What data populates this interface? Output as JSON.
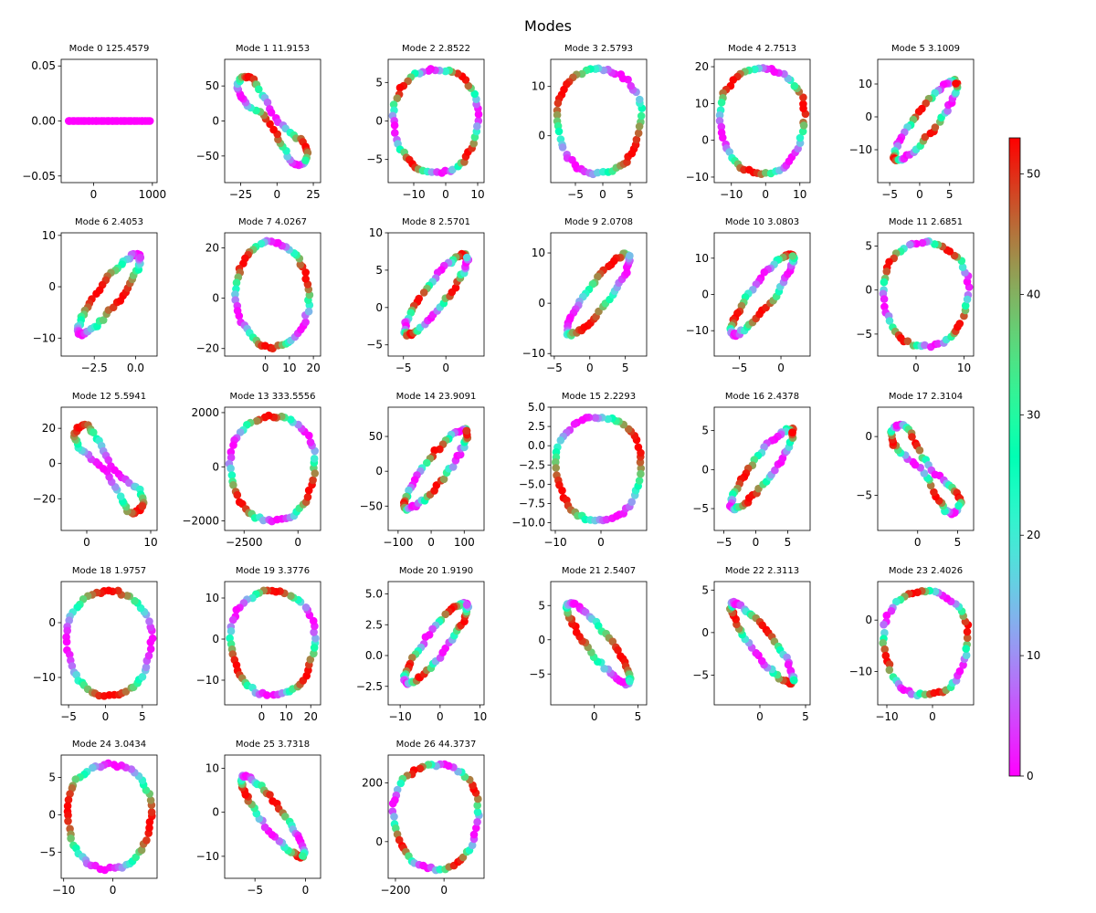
{
  "title": "Modes",
  "colorbar": {
    "min": 0,
    "max": 53,
    "ticks": [
      0,
      10,
      20,
      30,
      40,
      50
    ],
    "colormap": "rainbow"
  },
  "chart_data": [
    {
      "type": "scatter",
      "title": "Mode 0 125.4579",
      "xlim": [
        -550,
        1080
      ],
      "ylim": [
        -0.056,
        0.056
      ],
      "xticks": [
        "0",
        "1000"
      ],
      "xtickvals": [
        0,
        1000
      ],
      "yticks": [
        "−0.05",
        "0.00",
        "0.05"
      ],
      "ytickvals": [
        -0.05,
        0,
        0.05
      ],
      "shape": "line"
    },
    {
      "type": "scatter",
      "title": "Mode 1 11.9153",
      "xlim": [
        -36,
        30
      ],
      "ylim": [
        -88,
        88
      ],
      "xticks": [
        "−25",
        "0",
        "25"
      ],
      "xtickvals": [
        -25,
        0,
        25
      ],
      "yticks": [
        "−50",
        "0",
        "50"
      ],
      "ytickvals": [
        -50,
        0,
        50
      ],
      "shape": "pinched"
    },
    {
      "type": "scatter",
      "title": "Mode 2 2.8522",
      "xlim": [
        -18,
        12
      ],
      "ylim": [
        -8,
        8
      ],
      "xticks": [
        "−10",
        "0",
        "10"
      ],
      "xtickvals": [
        -10,
        0,
        10
      ],
      "yticks": [
        "−5",
        "0",
        "5"
      ],
      "ytickvals": [
        -5,
        0,
        5
      ],
      "shape": "ellipse"
    },
    {
      "type": "scatter",
      "title": "Mode 3 2.5793",
      "xlim": [
        -9.5,
        8
      ],
      "ylim": [
        -9.5,
        15.5
      ],
      "xticks": [
        "−5",
        "0",
        "5"
      ],
      "xtickvals": [
        -5,
        0,
        5
      ],
      "yticks": [
        "0",
        "10"
      ],
      "ytickvals": [
        0,
        10
      ],
      "shape": "ellipse"
    },
    {
      "type": "scatter",
      "title": "Mode 4 2.7513",
      "xlim": [
        -15,
        13
      ],
      "ylim": [
        -11.5,
        22
      ],
      "xticks": [
        "−10",
        "0",
        "10"
      ],
      "xtickvals": [
        -10,
        0,
        10
      ],
      "yticks": [
        "−10",
        "0",
        "10",
        "20"
      ],
      "ytickvals": [
        -10,
        0,
        10,
        20
      ],
      "shape": "ellipse"
    },
    {
      "type": "scatter",
      "title": "Mode 5 3.1009",
      "xlim": [
        -7,
        9
      ],
      "ylim": [
        -20,
        17.5
      ],
      "xticks": [
        "−5",
        "0",
        "5"
      ],
      "xtickvals": [
        -5,
        0,
        5
      ],
      "yticks": [
        "−10",
        "0",
        "10"
      ],
      "ytickvals": [
        -10,
        0,
        10
      ],
      "shape": "diag"
    },
    {
      "type": "scatter",
      "title": "Mode 6 2.4053",
      "xlim": [
        -4.5,
        1.3
      ],
      "ylim": [
        -13.5,
        10.5
      ],
      "xticks": [
        "−2.5",
        "0.0"
      ],
      "xtickvals": [
        -2.5,
        0
      ],
      "yticks": [
        "−10",
        "0",
        "10"
      ],
      "ytickvals": [
        -10,
        0,
        10
      ],
      "shape": "diag"
    },
    {
      "type": "scatter",
      "title": "Mode 7 4.0267",
      "xlim": [
        -17,
        23
      ],
      "ylim": [
        -23,
        26
      ],
      "xticks": [
        "0",
        "10",
        "20"
      ],
      "xtickvals": [
        0,
        10,
        20
      ],
      "yticks": [
        "−20",
        "0",
        "20"
      ],
      "ytickvals": [
        -20,
        0,
        20
      ],
      "shape": "tilt"
    },
    {
      "type": "scatter",
      "title": "Mode 8 2.5701",
      "xlim": [
        -6.8,
        4.5
      ],
      "ylim": [
        -6.5,
        10
      ],
      "xticks": [
        "−5",
        "0"
      ],
      "xtickvals": [
        -5,
        0
      ],
      "yticks": [
        "−5",
        "0",
        "5",
        "10"
      ],
      "ytickvals": [
        -5,
        0,
        5,
        10
      ],
      "shape": "diag"
    },
    {
      "type": "scatter",
      "title": "Mode 9 2.0708",
      "xlim": [
        -5.5,
        8
      ],
      "ylim": [
        -10.5,
        14
      ],
      "xticks": [
        "−5",
        "0",
        "5"
      ],
      "xtickvals": [
        -5,
        0,
        5
      ],
      "yticks": [
        "−10",
        "0",
        "10"
      ],
      "ytickvals": [
        -10,
        0,
        10
      ],
      "shape": "diag"
    },
    {
      "type": "scatter",
      "title": "Mode 10 3.0803",
      "xlim": [
        -8,
        3.5
      ],
      "ylim": [
        -17,
        17
      ],
      "xticks": [
        "−5",
        "0"
      ],
      "xtickvals": [
        -5,
        0
      ],
      "yticks": [
        "−10",
        "0",
        "10"
      ],
      "ytickvals": [
        -10,
        0,
        10
      ],
      "shape": "diag"
    },
    {
      "type": "scatter",
      "title": "Mode 11 2.6851",
      "xlim": [
        -8,
        12
      ],
      "ylim": [
        -7.5,
        6.5
      ],
      "xticks": [
        "0",
        "10"
      ],
      "xtickvals": [
        0,
        10
      ],
      "yticks": [
        "−5",
        "0",
        "5"
      ],
      "ytickvals": [
        -5,
        0,
        5
      ],
      "shape": "ellipse"
    },
    {
      "type": "scatter",
      "title": "Mode 12 5.5941",
      "xlim": [
        -4,
        11
      ],
      "ylim": [
        -38,
        32
      ],
      "xticks": [
        "0",
        "10"
      ],
      "xtickvals": [
        0,
        10
      ],
      "yticks": [
        "−20",
        "0",
        "20"
      ],
      "ytickvals": [
        -20,
        0,
        20
      ],
      "shape": "pinched"
    },
    {
      "type": "scatter",
      "title": "Mode 13 333.5556",
      "xlim": [
        -3400,
        1050
      ],
      "ylim": [
        -2350,
        2200
      ],
      "xticks": [
        "−2500",
        "0"
      ],
      "xtickvals": [
        -2500,
        0
      ],
      "yticks": [
        "−2000",
        "0",
        "2000"
      ],
      "ytickvals": [
        -2000,
        0,
        2000
      ],
      "shape": "ellipse"
    },
    {
      "type": "scatter",
      "title": "Mode 14 23.9091",
      "xlim": [
        -130,
        160
      ],
      "ylim": [
        -85,
        92
      ],
      "xticks": [
        "−100",
        "0",
        "100"
      ],
      "xtickvals": [
        -100,
        0,
        100
      ],
      "yticks": [
        "−50",
        "0",
        "50"
      ],
      "ytickvals": [
        -50,
        0,
        50
      ],
      "shape": "diag"
    },
    {
      "type": "scatter",
      "title": "Mode 15 2.2293",
      "xlim": [
        -11,
        10
      ],
      "ylim": [
        -11,
        5
      ],
      "xticks": [
        "−10",
        "0"
      ],
      "xtickvals": [
        -10,
        0
      ],
      "yticks": [
        "−10.0",
        "−7.5",
        "−5.0",
        "−2.5",
        "0.0",
        "2.5",
        "5.0"
      ],
      "ytickvals": [
        -10,
        -7.5,
        -5,
        -2.5,
        0,
        2.5,
        5
      ],
      "shape": "ellipse"
    },
    {
      "type": "scatter",
      "title": "Mode 16 2.4378",
      "xlim": [
        -6.5,
        8.5
      ],
      "ylim": [
        -7.8,
        8
      ],
      "xticks": [
        "−5",
        "0",
        "5"
      ],
      "xtickvals": [
        -5,
        0,
        5
      ],
      "yticks": [
        "−5",
        "0",
        "5"
      ],
      "ytickvals": [
        -5,
        0,
        5
      ],
      "shape": "diag"
    },
    {
      "type": "scatter",
      "title": "Mode 17 2.3104",
      "xlim": [
        -5,
        7
      ],
      "ylim": [
        -8,
        2.5
      ],
      "xticks": [
        "0",
        "5"
      ],
      "xtickvals": [
        0,
        5
      ],
      "yticks": [
        "−5",
        "0"
      ],
      "ytickvals": [
        -5,
        0
      ],
      "shape": "pinched"
    },
    {
      "type": "scatter",
      "title": "Mode 18 1.9757",
      "xlim": [
        -6,
        7
      ],
      "ylim": [
        -15,
        7.5
      ],
      "xticks": [
        "−5",
        "0",
        "5"
      ],
      "xtickvals": [
        -5,
        0,
        5
      ],
      "yticks": [
        "−10",
        "0"
      ],
      "ytickvals": [
        -10,
        0
      ],
      "shape": "ellipse"
    },
    {
      "type": "scatter",
      "title": "Mode 19 3.3776",
      "xlim": [
        -15,
        24
      ],
      "ylim": [
        -16,
        14
      ],
      "xticks": [
        "0",
        "10",
        "20"
      ],
      "xtickvals": [
        0,
        10,
        20
      ],
      "yticks": [
        "−10",
        "0",
        "10"
      ],
      "ytickvals": [
        -10,
        0,
        10
      ],
      "shape": "ellipse"
    },
    {
      "type": "scatter",
      "title": "Mode 20 1.9190",
      "xlim": [
        -13,
        11
      ],
      "ylim": [
        -4,
        6
      ],
      "xticks": [
        "−10",
        "0",
        "10"
      ],
      "xtickvals": [
        -10,
        0,
        10
      ],
      "yticks": [
        "−2.5",
        "0.0",
        "2.5",
        "5.0"
      ],
      "ytickvals": [
        -2.5,
        0,
        2.5,
        5
      ],
      "shape": "diag"
    },
    {
      "type": "scatter",
      "title": "Mode 21 2.5407",
      "xlim": [
        -5,
        6
      ],
      "ylim": [
        -9.5,
        8.5
      ],
      "xticks": [
        "0",
        "5"
      ],
      "xtickvals": [
        0,
        5
      ],
      "yticks": [
        "−5",
        "0",
        "5"
      ],
      "ytickvals": [
        -5,
        0,
        5
      ],
      "shape": "antidiag"
    },
    {
      "type": "scatter",
      "title": "Mode 22 2.3113",
      "xlim": [
        -5,
        5.5
      ],
      "ylim": [
        -8.5,
        6
      ],
      "xticks": [
        "0",
        "5"
      ],
      "xtickvals": [
        0,
        5
      ],
      "yticks": [
        "−5",
        "0",
        "5"
      ],
      "ytickvals": [
        -5,
        0,
        5
      ],
      "shape": "antidiag"
    },
    {
      "type": "scatter",
      "title": "Mode 23 2.4026",
      "xlim": [
        -12,
        9
      ],
      "ylim": [
        -16.5,
        7.5
      ],
      "xticks": [
        "−10",
        "0"
      ],
      "xtickvals": [
        -10,
        0
      ],
      "yticks": [
        "−10",
        "0"
      ],
      "ytickvals": [
        -10,
        0
      ],
      "shape": "ellipse"
    },
    {
      "type": "scatter",
      "title": "Mode 24 3.0434",
      "xlim": [
        -10.5,
        9
      ],
      "ylim": [
        -8.5,
        8
      ],
      "xticks": [
        "−10",
        "0"
      ],
      "xtickvals": [
        -10,
        0
      ],
      "yticks": [
        "−5",
        "0",
        "5"
      ],
      "ytickvals": [
        -5,
        0,
        5
      ],
      "shape": "ellipse"
    },
    {
      "type": "scatter",
      "title": "Mode 25 3.7318",
      "xlim": [
        -8,
        1.5
      ],
      "ylim": [
        -15,
        13
      ],
      "xticks": [
        "−5",
        "0"
      ],
      "xtickvals": [
        -5,
        0
      ],
      "yticks": [
        "−10",
        "0",
        "10"
      ],
      "ytickvals": [
        -10,
        0,
        10
      ],
      "shape": "antidiag"
    },
    {
      "type": "scatter",
      "title": "Mode 26 44.3737",
      "xlim": [
        -230,
        165
      ],
      "ylim": [
        -125,
        295
      ],
      "xticks": [
        "−200",
        "0"
      ],
      "xtickvals": [
        -200,
        0
      ],
      "yticks": [
        "0",
        "200"
      ],
      "ytickvals": [
        0,
        200
      ],
      "shape": "ellipse"
    }
  ]
}
